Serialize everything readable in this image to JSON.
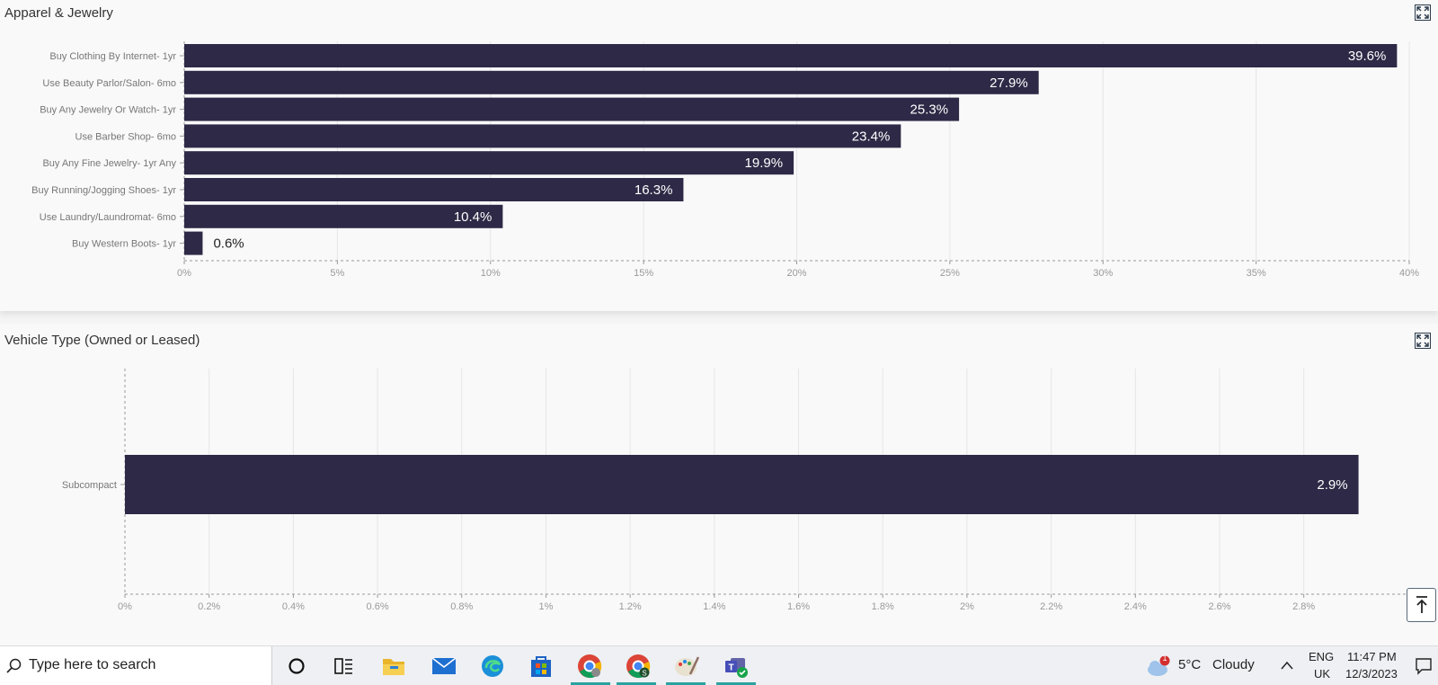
{
  "panels": [
    {
      "title": "Apparel & Jewelry"
    },
    {
      "title": "Vehicle Type (Owned or Leased)"
    }
  ],
  "colors": {
    "bar": "#2e2946",
    "grid": "#e6e6e6",
    "axis": "#999999",
    "tick_text": "#999999",
    "cat_text": "#777777"
  },
  "chart_data": [
    {
      "type": "bar",
      "orientation": "horizontal",
      "categories": [
        "Buy Clothing By Internet- 1yr",
        "Use Beauty Parlor/Salon- 6mo",
        "Buy Any Jewelry Or Watch- 1yr",
        "Use Barber Shop- 6mo",
        "Buy Any Fine Jewelry- 1yr Any",
        "Buy Running/Jogging Shoes- 1yr",
        "Use Laundry/Laundromat- 6mo",
        "Buy Western Boots- 1yr"
      ],
      "values": [
        39.6,
        27.9,
        25.3,
        23.4,
        19.9,
        16.3,
        10.4,
        0.6
      ],
      "value_labels": [
        "39.6%",
        "27.9%",
        "25.3%",
        "23.4%",
        "19.9%",
        "16.3%",
        "10.4%",
        "0.6%"
      ],
      "xlim": [
        0,
        40
      ],
      "xticks": [
        0,
        5,
        10,
        15,
        20,
        25,
        30,
        35,
        40
      ],
      "xtick_labels": [
        "0%",
        "5%",
        "10%",
        "15%",
        "20%",
        "25%",
        "30%",
        "35%",
        "40%"
      ],
      "grid": true
    },
    {
      "type": "bar",
      "orientation": "horizontal",
      "categories": [
        "Subcompact"
      ],
      "values": [
        2.93
      ],
      "value_labels": [
        "2.9%"
      ],
      "xlim": [
        0,
        2.98
      ],
      "xticks": [
        0,
        0.2,
        0.4,
        0.6,
        0.8,
        1,
        1.2,
        1.4,
        1.6,
        1.8,
        2,
        2.2,
        2.4,
        2.6,
        2.8
      ],
      "xtick_labels": [
        "0%",
        "0.2%",
        "0.4%",
        "0.6%",
        "0.8%",
        "1%",
        "1.2%",
        "1.4%",
        "1.6%",
        "1.8%",
        "2%",
        "2.2%",
        "2.4%",
        "2.6%",
        "2.8%"
      ],
      "grid": true
    }
  ],
  "taskbar": {
    "search_placeholder": "Type here to search",
    "apps": [
      "cortana-icon",
      "task-view-icon",
      "file-explorer-icon",
      "mail-icon",
      "edge-icon",
      "store-icon",
      "chrome-icon",
      "chrome-profile-icon",
      "paint-icon",
      "teams-icon"
    ],
    "weather": {
      "badge": "1",
      "temp": "5°C",
      "condition": "Cloudy"
    },
    "lang": {
      "line1": "ENG",
      "line2": "UK"
    },
    "clock": {
      "time": "11:47 PM",
      "date": "12/3/2023"
    }
  }
}
